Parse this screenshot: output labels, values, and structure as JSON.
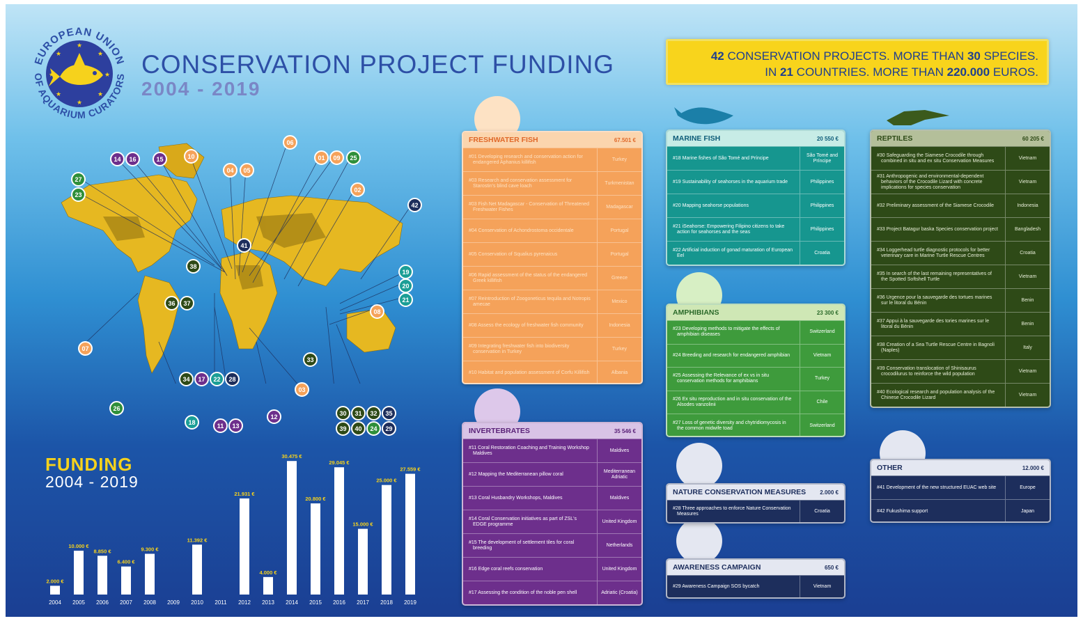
{
  "header": {
    "title": "CONSERVATION PROJECT FUNDING",
    "years": "2004 - 2019"
  },
  "logo": {
    "text_top": "EUROPEAN UNION",
    "text_bottom": "OF AQUARIUM CURATORS",
    "icon": "fish-icon"
  },
  "banner": {
    "line1_pre": "",
    "n1": "42",
    "line1_mid": " CONSERVATION PROJECTS. MORE THAN ",
    "n2": "30",
    "line1_post": " SPECIES.",
    "line2_pre": "IN ",
    "n3": "21",
    "line2_mid": " COUNTRIES. MORE THAN ",
    "n4": "220.000",
    "line2_post": " EUROS."
  },
  "funding": {
    "title": "FUNDING",
    "years": "2004 - 2019"
  },
  "colors": {
    "fresh": "#f5a25a",
    "marine": "#16968f",
    "amph": "#3e9b3c",
    "rept": "#2e4a17",
    "inv": "#6d2f8c",
    "other": "#1d2e5c",
    "yellow": "#f8d41c"
  },
  "chart_data": {
    "type": "bar",
    "categories": [
      "2004",
      "2005",
      "2006",
      "2007",
      "2008",
      "2009",
      "2010",
      "2011",
      "2012",
      "2013",
      "2014",
      "2015",
      "2016",
      "2017",
      "2018",
      "2019"
    ],
    "values": [
      2000,
      10000,
      8850,
      6400,
      9300,
      0,
      11392,
      0,
      21931,
      4000,
      30475,
      20800,
      29045,
      15000,
      25000,
      27559
    ],
    "labels": [
      "2.000 €",
      "10.000 €",
      "8.850 €",
      "6.400 €",
      "9.300 €",
      "",
      "11.392 €",
      "",
      "21.931 €",
      "4.000 €",
      "30.475 €",
      "20.800 €",
      "29.045 €",
      "15.000 €",
      "25.000 €",
      "27.559 €"
    ],
    "title": "FUNDING",
    "ylim": [
      0,
      32000
    ]
  },
  "panels": {
    "fresh": {
      "title": "FRESHWATER FISH",
      "amount": "67.501 €",
      "icon": "fish-head-icon",
      "rows": [
        {
          "d": "#01 Developing research and conservation action for endangered Aphanius killifish",
          "c": "Turkey"
        },
        {
          "d": "#03 Research and conservation assessment for Starostin's blind cave loach",
          "c": "Turkmenistan"
        },
        {
          "d": "#03 Fish Net Madagascar - Conservation of Threatened Freshwater Fishes",
          "c": "Madagascar"
        },
        {
          "d": "#04 Conservation of Achondrostoma occidentale",
          "c": "Portugal"
        },
        {
          "d": "#05 Conservation of Squalius pyrenaicus",
          "c": "Portugal"
        },
        {
          "d": "#06 Rapid assessment of the status of the endangered Greek killifish",
          "c": "Greece"
        },
        {
          "d": "#07 Reintroduction of Zoogoneticus tequila and Notropis amecae",
          "c": "Mexico"
        },
        {
          "d": "#08 Assess the ecology of freshwater fish community",
          "c": "Indonesia"
        },
        {
          "d": "#09 Integrating freshwater fish into biodiversity conservation in Turkey",
          "c": "Turkey"
        },
        {
          "d": "#10 Habitat and population assessment of Corfu Killifish",
          "c": "Albania"
        }
      ]
    },
    "marine": {
      "title": "MARINE FISH",
      "amount": "20 550 €",
      "icon": "fish-icon",
      "rows": [
        {
          "d": "#18 Marine fishes of São Tomé and Príncipe",
          "c": "São Tomé and Príncipe"
        },
        {
          "d": "#19 Sustainability of seahorses in the aquarium trade",
          "c": "Philippines"
        },
        {
          "d": "#20 Mapping seahorse populations",
          "c": "Philippines"
        },
        {
          "d": "#21 iSeahorse: Empowering Filipino citizens to take action for seahorses and the seas",
          "c": "Philippines"
        },
        {
          "d": "#22 Artificial induction of gonad maturation of European Eel",
          "c": "Croatia"
        }
      ]
    },
    "amph": {
      "title": "AMPHIBIANS",
      "amount": "23 300 €",
      "icon": "lizard-icon",
      "rows": [
        {
          "d": "#23 Developing methods to mitigate the effects of amphibian diseases",
          "c": "Switzerland"
        },
        {
          "d": "#24 Breeding and research for endangered amphibian",
          "c": "Vietnam"
        },
        {
          "d": "#25 Assessing the Relevance of ex vs in situ conservation methods for amphibians",
          "c": "Turkey"
        },
        {
          "d": "#26 Ex situ reproduction and in situ conservation of the Alsodes vanzolinii",
          "c": "Chile"
        },
        {
          "d": "#27 Loss of genetic diversity and chytridiomycosis in the common midwife toad",
          "c": "Switzerland"
        }
      ]
    },
    "rept": {
      "title": "REPTILES",
      "amount": "60 205 €",
      "icon": "crocodile-icon",
      "rows": [
        {
          "d": "#30 Safeguarding the Siamese Crocodile through combined in situ and ex situ Conservation Measures",
          "c": "Vietnam"
        },
        {
          "d": "#31 Anthropogenic and environmental-dependent behaviors of the Crocodile Lizard with concrete implications for species conservation",
          "c": "Vietnam"
        },
        {
          "d": "#32 Preliminary assessment of the Siamese Crocodile",
          "c": "Indonesia"
        },
        {
          "d": "#33 Project Batagur baska Species conservation project",
          "c": "Bangladesh"
        },
        {
          "d": "#34 Loggerhead turtle diagnostic protocols for better veterinary care in Marine Turtle Rescue Centres",
          "c": "Croatia"
        },
        {
          "d": "#35 In search of the last remaining representatives of the Spotted Softshell Turtle",
          "c": "Vietnam"
        },
        {
          "d": "#36 Urgence pour la sauvegarde des tortues marines sur le litoral du Bénin",
          "c": "Benin"
        },
        {
          "d": "#37 Appui à la sauvegarde des tories marines sur le litoral du Bénin",
          "c": "Benin"
        },
        {
          "d": "#38 Creation of a Sea Turtle Rescue Centre in Bagnoli (Naples)",
          "c": "Italy"
        },
        {
          "d": "#39 Conservation translocation of Shinisaurus crocodilurus to reinforce the wild population",
          "c": "Vietnam"
        },
        {
          "d": "#40 Ecological research and population analysis of the Chinese Crocodile Lizard",
          "c": "Vietnam"
        }
      ]
    },
    "inv": {
      "title": "INVERTEBRATES",
      "amount": "35 546 €",
      "icon": "coral-icon",
      "rows": [
        {
          "d": "#11 Coral Restoration Coaching and Training Workshop Maldives",
          "c": "Maldives"
        },
        {
          "d": "#12 Mapping the Mediterranean pillow coral",
          "c": "Mediterranean Adriatic"
        },
        {
          "d": "#13 Coral Husbandry Workshops, Maldives",
          "c": "Maldives"
        },
        {
          "d": "#14 Coral Conservation initiatives as part of ZSL's EDGE programme",
          "c": "United Kingdom"
        },
        {
          "d": "#15 The development of settlement tiles for coral breeding",
          "c": "Netherlands"
        },
        {
          "d": "#16 Edge coral reefs conservation",
          "c": "United Kingdom"
        },
        {
          "d": "#17 Assessing the condition of the noble pen shell",
          "c": "Adriatic (Croatia)"
        }
      ]
    },
    "nature": {
      "title": "NATURE CONSERVATION MEASURES",
      "amount": "2.000 €",
      "icon": "leaf-globe-icon",
      "rows": [
        {
          "d": "#28 Three approaches to enforce Nature Conservation Measures",
          "c": "Croatia"
        }
      ]
    },
    "aware": {
      "title": "AWARENESS CAMPAIGN",
      "amount": "650 €",
      "icon": "megaphone-icon",
      "rows": [
        {
          "d": "#29 Awareness Campaign SOS bycatch",
          "c": "Vietnam"
        }
      ]
    },
    "other": {
      "title": "OTHER",
      "amount": "12.000 €",
      "icon": "ellipsis-icon",
      "rows": [
        {
          "d": "#41 Development of the new structured EUAC web site",
          "c": "Europe"
        },
        {
          "d": "#42 Fukushima support",
          "c": "Japan"
        }
      ]
    }
  },
  "map": {
    "icon": "world-map-icon",
    "badges": [
      {
        "t": "14",
        "c": "p"
      },
      {
        "t": "16",
        "c": "p"
      },
      {
        "t": "15",
        "c": "p"
      },
      {
        "t": "10",
        "c": "o"
      },
      {
        "t": "06",
        "c": "o"
      },
      {
        "t": "04",
        "c": "o"
      },
      {
        "t": "05",
        "c": "o"
      },
      {
        "t": "01",
        "c": "o"
      },
      {
        "t": "09",
        "c": "o"
      },
      {
        "t": "25",
        "c": "g"
      },
      {
        "t": "02",
        "c": "o"
      },
      {
        "t": "27",
        "c": "g"
      },
      {
        "t": "23",
        "c": "g"
      },
      {
        "t": "42",
        "c": "d"
      },
      {
        "t": "41",
        "c": "d"
      },
      {
        "t": "38",
        "c": "k"
      },
      {
        "t": "19",
        "c": "t"
      },
      {
        "t": "20",
        "c": "t"
      },
      {
        "t": "21",
        "c": "t"
      },
      {
        "t": "36",
        "c": "k"
      },
      {
        "t": "37",
        "c": "k"
      },
      {
        "t": "08",
        "c": "o"
      },
      {
        "t": "07",
        "c": "o"
      },
      {
        "t": "33",
        "c": "k"
      },
      {
        "t": "34",
        "c": "k"
      },
      {
        "t": "17",
        "c": "p"
      },
      {
        "t": "22",
        "c": "t"
      },
      {
        "t": "28",
        "c": "d"
      },
      {
        "t": "03",
        "c": "o"
      },
      {
        "t": "26",
        "c": "g"
      },
      {
        "t": "18",
        "c": "t"
      },
      {
        "t": "11",
        "c": "p"
      },
      {
        "t": "13",
        "c": "p"
      },
      {
        "t": "12",
        "c": "p"
      },
      {
        "t": "30",
        "c": "k"
      },
      {
        "t": "31",
        "c": "k"
      },
      {
        "t": "32",
        "c": "k"
      },
      {
        "t": "35",
        "c": "d"
      },
      {
        "t": "39",
        "c": "k"
      },
      {
        "t": "40",
        "c": "k"
      },
      {
        "t": "24",
        "c": "g"
      },
      {
        "t": "29",
        "c": "d"
      }
    ]
  }
}
